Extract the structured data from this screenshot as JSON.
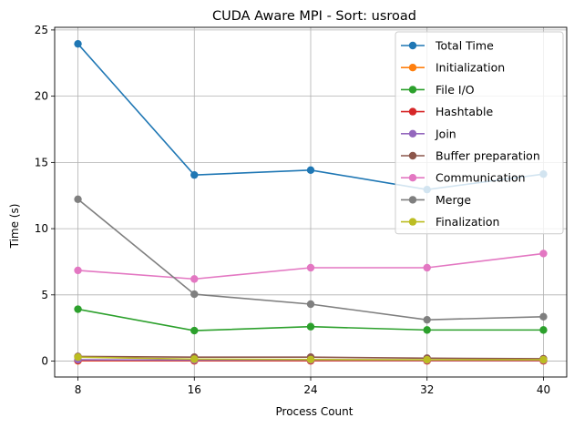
{
  "chart_data": {
    "type": "line",
    "title": "CUDA Aware MPI - Sort: usroad",
    "xlabel": "Process Count",
    "ylabel": "Time (s)",
    "x": [
      8,
      16,
      24,
      32,
      40
    ],
    "xticks": [
      8,
      16,
      24,
      32,
      40
    ],
    "yticks": [
      0,
      5,
      10,
      15,
      20,
      25
    ],
    "xlim": [
      6.4,
      41.6
    ],
    "ylim": [
      -1.2,
      25.2
    ],
    "grid": true,
    "legend_position": "top-right",
    "series": [
      {
        "name": "Total Time",
        "color": "#1f77b4",
        "values": [
          23.95,
          14.05,
          14.42,
          12.95,
          14.12
        ]
      },
      {
        "name": "Initialization",
        "color": "#ff7f0e",
        "values": [
          0.02,
          0.02,
          0.02,
          0.02,
          0.02
        ]
      },
      {
        "name": "File I/O",
        "color": "#2ca02c",
        "values": [
          3.92,
          2.3,
          2.6,
          2.35,
          2.35
        ]
      },
      {
        "name": "Hashtable",
        "color": "#d62728",
        "values": [
          0.04,
          0.03,
          0.03,
          0.03,
          0.03
        ]
      },
      {
        "name": "Join",
        "color": "#9467bd",
        "values": [
          0.1,
          0.08,
          0.08,
          0.07,
          0.07
        ]
      },
      {
        "name": "Buffer preparation",
        "color": "#8c564b",
        "values": [
          0.35,
          0.3,
          0.3,
          0.22,
          0.18
        ]
      },
      {
        "name": "Communication",
        "color": "#e377c2",
        "values": [
          6.85,
          6.2,
          7.05,
          7.05,
          8.12
        ]
      },
      {
        "name": "Merge",
        "color": "#7f7f7f",
        "values": [
          12.22,
          5.05,
          4.3,
          3.12,
          3.35
        ]
      },
      {
        "name": "Finalization",
        "color": "#bcbd22",
        "values": [
          0.3,
          0.15,
          0.12,
          0.1,
          0.1
        ]
      }
    ]
  }
}
